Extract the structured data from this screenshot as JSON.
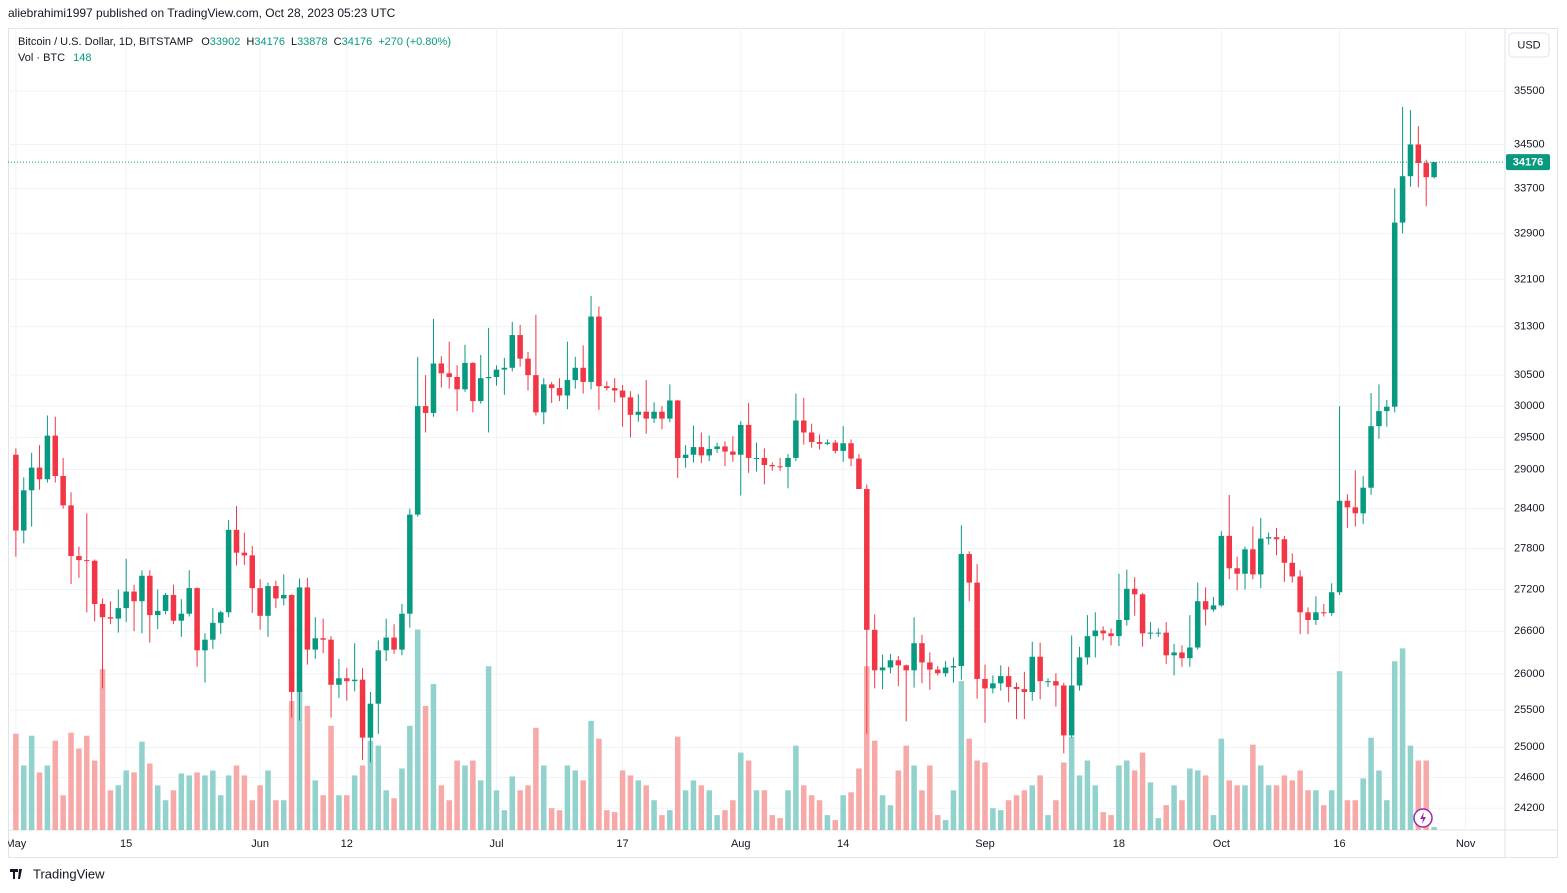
{
  "header": "aliebrahimi1997 published on TradingView.com, Oct 28, 2023 05:23 UTC",
  "footer": "TradingView",
  "chart_data": {
    "type": "candlestick",
    "title": "Bitcoin / U.S. Dollar, 1D, BITSTAMP",
    "ohlc_letters": [
      "O",
      "H",
      "L",
      "C"
    ],
    "change_label": "+270 (+0.80%)",
    "volume_label": "Vol · BTC",
    "price_axis_unit": "USD",
    "log_scale": true,
    "grid": true,
    "up_color": "#089981",
    "down_color": "#f23645",
    "up_volume_color": "#92d2cc",
    "down_volume_color": "#f7a9a7",
    "ylim": [
      23920,
      36715
    ],
    "yticks": [
      24200,
      24600,
      25000,
      25500,
      26000,
      26600,
      27200,
      27800,
      28400,
      29000,
      29500,
      30000,
      30500,
      31300,
      32100,
      32900,
      33700,
      34500,
      35500
    ],
    "xlim": [
      -1,
      189
    ],
    "xticks": [
      {
        "value": 0,
        "label": "May"
      },
      {
        "value": 14,
        "label": "15"
      },
      {
        "value": 31,
        "label": "Jun"
      },
      {
        "value": 42,
        "label": "12"
      },
      {
        "value": 61,
        "label": "Jul"
      },
      {
        "value": 77,
        "label": "17"
      },
      {
        "value": 92,
        "label": "Aug"
      },
      {
        "value": 105,
        "label": "14"
      },
      {
        "value": 123,
        "label": "Sep"
      },
      {
        "value": 140,
        "label": "18"
      },
      {
        "value": 153,
        "label": "Oct"
      },
      {
        "value": 168,
        "label": "16"
      },
      {
        "value": 184,
        "label": "Nov"
      }
    ],
    "candles": [
      [
        29230,
        29330,
        27680,
        28070
      ],
      [
        28070,
        28880,
        27880,
        28680
      ],
      [
        28680,
        29260,
        28130,
        29030
      ],
      [
        29030,
        29380,
        28690,
        28850
      ],
      [
        28850,
        29850,
        28800,
        29530
      ],
      [
        29530,
        29830,
        28800,
        28900
      ],
      [
        28900,
        29180,
        28400,
        28450
      ],
      [
        28450,
        28650,
        27280,
        27690
      ],
      [
        27690,
        27830,
        27370,
        27630
      ],
      [
        27630,
        28330,
        26870,
        27620
      ],
      [
        27620,
        27640,
        26740,
        26990
      ],
      [
        26990,
        27070,
        25800,
        26800
      ],
      [
        26800,
        27030,
        26700,
        26780
      ],
      [
        26780,
        27200,
        26580,
        26930
      ],
      [
        26930,
        27650,
        26730,
        27170
      ],
      [
        27170,
        27270,
        26600,
        27030
      ],
      [
        27030,
        27480,
        26570,
        27400
      ],
      [
        27400,
        27480,
        26440,
        26830
      ],
      [
        26830,
        27200,
        26630,
        26890
      ],
      [
        26890,
        27150,
        26840,
        27120
      ],
      [
        27120,
        27270,
        26700,
        26750
      ],
      [
        26750,
        27060,
        26520,
        26850
      ],
      [
        26850,
        27480,
        26810,
        27220
      ],
      [
        27220,
        27230,
        26100,
        26330
      ],
      [
        26330,
        26570,
        25880,
        26480
      ],
      [
        26480,
        26930,
        26350,
        26720
      ],
      [
        26720,
        26890,
        26560,
        26870
      ],
      [
        26870,
        28230,
        26800,
        28080
      ],
      [
        28080,
        28440,
        27550,
        27740
      ],
      [
        27740,
        28040,
        27560,
        27700
      ],
      [
        27700,
        27840,
        26860,
        27220
      ],
      [
        27220,
        27350,
        26620,
        26820
      ],
      [
        26820,
        27300,
        26520,
        27250
      ],
      [
        27250,
        27330,
        26930,
        27070
      ],
      [
        27070,
        27420,
        26970,
        27120
      ],
      [
        27120,
        27130,
        25400,
        25750
      ],
      [
        25750,
        27360,
        25360,
        27230
      ],
      [
        27230,
        27370,
        26130,
        26340
      ],
      [
        26340,
        26800,
        26210,
        26500
      ],
      [
        26500,
        26780,
        26290,
        26480
      ],
      [
        26480,
        26530,
        25400,
        25850
      ],
      [
        25850,
        26210,
        25670,
        25940
      ],
      [
        25940,
        26080,
        25630,
        25900
      ],
      [
        25900,
        26430,
        25760,
        25920
      ],
      [
        25920,
        26080,
        24830,
        25130
      ],
      [
        25130,
        25750,
        24800,
        25590
      ],
      [
        25590,
        26470,
        25180,
        26330
      ],
      [
        26330,
        26780,
        26180,
        26510
      ],
      [
        26510,
        26700,
        26280,
        26340
      ],
      [
        26340,
        26990,
        26260,
        26850
      ],
      [
        26850,
        28400,
        26650,
        28310
      ],
      [
        28310,
        30800,
        28280,
        30000
      ],
      [
        30000,
        30500,
        29580,
        29890
      ],
      [
        29890,
        31430,
        29830,
        30690
      ],
      [
        30690,
        30810,
        30300,
        30530
      ],
      [
        30530,
        31050,
        30280,
        30470
      ],
      [
        30470,
        30660,
        29920,
        30270
      ],
      [
        30270,
        31000,
        30230,
        30700
      ],
      [
        30700,
        30710,
        29900,
        30080
      ],
      [
        30080,
        30830,
        30040,
        30450
      ],
      [
        30450,
        31280,
        29580,
        30470
      ],
      [
        30470,
        30660,
        30330,
        30590
      ],
      [
        30590,
        30780,
        30180,
        30620
      ],
      [
        30620,
        31380,
        30560,
        31160
      ],
      [
        31160,
        31330,
        30640,
        30770
      ],
      [
        30770,
        30880,
        30250,
        30500
      ],
      [
        30500,
        31500,
        29850,
        29900
      ],
      [
        29900,
        30450,
        29710,
        30350
      ],
      [
        30350,
        30390,
        30050,
        30290
      ],
      [
        30290,
        30450,
        30080,
        30170
      ],
      [
        30170,
        31050,
        29950,
        30420
      ],
      [
        30420,
        30800,
        30280,
        30620
      ],
      [
        30620,
        30990,
        30200,
        30390
      ],
      [
        30390,
        31820,
        30270,
        31470
      ],
      [
        31470,
        31640,
        29940,
        30320
      ],
      [
        30320,
        30400,
        30250,
        30290
      ],
      [
        30290,
        30450,
        30060,
        30250
      ],
      [
        30250,
        30340,
        29670,
        30140
      ],
      [
        30140,
        30240,
        29500,
        29860
      ],
      [
        29860,
        30190,
        29750,
        29910
      ],
      [
        29910,
        30420,
        29560,
        29800
      ],
      [
        29800,
        30060,
        29730,
        29910
      ],
      [
        29910,
        30000,
        29630,
        29800
      ],
      [
        29800,
        30350,
        29740,
        30090
      ],
      [
        30090,
        30100,
        28870,
        29180
      ],
      [
        29180,
        29380,
        29030,
        29230
      ],
      [
        29230,
        29690,
        29110,
        29350
      ],
      [
        29350,
        29580,
        29100,
        29220
      ],
      [
        29220,
        29530,
        29130,
        29320
      ],
      [
        29320,
        29420,
        29260,
        29360
      ],
      [
        29360,
        29440,
        29050,
        29280
      ],
      [
        29280,
        29520,
        29120,
        29230
      ],
      [
        29230,
        29760,
        28600,
        29700
      ],
      [
        29700,
        30050,
        28950,
        29180
      ],
      [
        29180,
        29420,
        28970,
        29180
      ],
      [
        29180,
        29330,
        28770,
        29070
      ],
      [
        29070,
        29110,
        28980,
        29050
      ],
      [
        29050,
        29180,
        28980,
        29040
      ],
      [
        29040,
        29240,
        28710,
        29180
      ],
      [
        29180,
        30200,
        29130,
        29770
      ],
      [
        29770,
        30130,
        29390,
        29580
      ],
      [
        29580,
        29720,
        29340,
        29430
      ],
      [
        29430,
        29550,
        29310,
        29400
      ],
      [
        29400,
        29470,
        29380,
        29420
      ],
      [
        29420,
        29460,
        29250,
        29290
      ],
      [
        29290,
        29680,
        29120,
        29410
      ],
      [
        29410,
        29470,
        29050,
        29170
      ],
      [
        29170,
        29240,
        28710,
        28700
      ],
      [
        28700,
        28770,
        25180,
        26620
      ],
      [
        26620,
        26840,
        25800,
        26050
      ],
      [
        26050,
        26270,
        25790,
        26090
      ],
      [
        26090,
        26280,
        26010,
        26190
      ],
      [
        26190,
        26250,
        25830,
        26120
      ],
      [
        26120,
        26130,
        25350,
        26050
      ],
      [
        26050,
        26800,
        25810,
        26430
      ],
      [
        26430,
        26550,
        25870,
        26160
      ],
      [
        26160,
        26300,
        25780,
        26060
      ],
      [
        26060,
        26110,
        25980,
        26010
      ],
      [
        26010,
        26180,
        25960,
        26090
      ],
      [
        26090,
        26230,
        25880,
        26110
      ],
      [
        26110,
        28150,
        25920,
        27720
      ],
      [
        27720,
        27760,
        27030,
        27300
      ],
      [
        27300,
        27570,
        25660,
        25930
      ],
      [
        25930,
        26130,
        25330,
        25800
      ],
      [
        25800,
        25980,
        25730,
        25870
      ],
      [
        25870,
        26120,
        25770,
        25970
      ],
      [
        25970,
        26100,
        25610,
        25820
      ],
      [
        25820,
        25880,
        25380,
        25790
      ],
      [
        25790,
        26030,
        25380,
        25750
      ],
      [
        25750,
        26450,
        25630,
        26240
      ],
      [
        26240,
        26440,
        25650,
        25900
      ],
      [
        25900,
        25940,
        25820,
        25900
      ],
      [
        25900,
        26010,
        25550,
        25840
      ],
      [
        25840,
        25880,
        24920,
        25160
      ],
      [
        25160,
        26540,
        25130,
        25840
      ],
      [
        25840,
        26380,
        25770,
        26230
      ],
      [
        26230,
        26830,
        26130,
        26530
      ],
      [
        26530,
        26870,
        26230,
        26610
      ],
      [
        26610,
        26670,
        26470,
        26570
      ],
      [
        26570,
        26640,
        26400,
        26530
      ],
      [
        26530,
        27430,
        26390,
        26760
      ],
      [
        26760,
        27490,
        26680,
        27210
      ],
      [
        27210,
        27380,
        26820,
        27130
      ],
      [
        27130,
        27150,
        26380,
        26570
      ],
      [
        26570,
        26730,
        26490,
        26580
      ],
      [
        26580,
        26640,
        26520,
        26580
      ],
      [
        26580,
        26730,
        26140,
        26260
      ],
      [
        26260,
        26420,
        25980,
        26300
      ],
      [
        26300,
        26400,
        26100,
        26220
      ],
      [
        26220,
        26830,
        26100,
        26370
      ],
      [
        26370,
        27300,
        26340,
        27030
      ],
      [
        27030,
        27230,
        26680,
        26910
      ],
      [
        26910,
        27090,
        26880,
        26970
      ],
      [
        26970,
        28060,
        26950,
        27990
      ],
      [
        27990,
        28610,
        27350,
        27510
      ],
      [
        27510,
        27680,
        27190,
        27430
      ],
      [
        27430,
        27830,
        27200,
        27790
      ],
      [
        27790,
        28130,
        27350,
        27420
      ],
      [
        27420,
        28260,
        27220,
        27950
      ],
      [
        27950,
        28040,
        27860,
        27970
      ],
      [
        27970,
        28110,
        27700,
        27940
      ],
      [
        27940,
        27990,
        27310,
        27590
      ],
      [
        27590,
        27730,
        27300,
        27390
      ],
      [
        27390,
        27480,
        26560,
        26870
      ],
      [
        26870,
        26940,
        26560,
        26760
      ],
      [
        26760,
        27100,
        26690,
        26870
      ],
      [
        26870,
        26990,
        26810,
        26860
      ],
      [
        26860,
        27290,
        26820,
        27160
      ],
      [
        27160,
        30000,
        27120,
        28520
      ],
      [
        28520,
        28620,
        28110,
        28420
      ],
      [
        28420,
        28990,
        28130,
        28330
      ],
      [
        28330,
        28900,
        28170,
        28720
      ],
      [
        28720,
        30210,
        28610,
        29680
      ],
      [
        29680,
        30350,
        29480,
        29920
      ],
      [
        29920,
        30100,
        29670,
        29990
      ],
      [
        29990,
        33700,
        29900,
        33090
      ],
      [
        33090,
        35200,
        32900,
        33920
      ],
      [
        33920,
        35140,
        33730,
        34500
      ],
      [
        34500,
        34840,
        33720,
        34160
      ],
      [
        34160,
        34220,
        33380,
        33902
      ],
      [
        33902,
        34176,
        33878,
        34176
      ]
    ],
    "volumes": [
      4850,
      3250,
      4750,
      2900,
      3250,
      4500,
      1750,
      4900,
      4100,
      4750,
      3500,
      8100,
      2000,
      2250,
      3000,
      2900,
      4450,
      3350,
      2250,
      1500,
      2000,
      2850,
      2750,
      2900,
      2750,
      3000,
      1750,
      2750,
      3250,
      2750,
      1500,
      2250,
      3000,
      1500,
      1500,
      6500,
      7000,
      6250,
      2500,
      1750,
      5250,
      1750,
      1750,
      2750,
      3250,
      4500,
      4250,
      2000,
      1600,
      3100,
      5250,
      10100,
      6250,
      7350,
      2250,
      1500,
      3500,
      3250,
      3500,
      2500,
      8250,
      2000,
      1000,
      2700,
      2000,
      2250,
      5150,
      3250,
      1100,
      1000,
      3250,
      3000,
      2500,
      5500,
      4600,
      1000,
      900,
      3000,
      2750,
      2500,
      2250,
      1500,
      750,
      1000,
      4700,
      2000,
      2500,
      2250,
      2000,
      750,
      1000,
      1500,
      3900,
      3500,
      2000,
      2000,
      750,
      600,
      2000,
      4250,
      2250,
      1750,
      1500,
      750,
      500,
      1750,
      1900,
      3100,
      8250,
      4500,
      1750,
      1250,
      3000,
      4250,
      3250,
      2000,
      3250,
      750,
      500,
      2000,
      7500,
      4600,
      3500,
      3400,
      1100,
      1000,
      1500,
      1750,
      2000,
      2250,
      2750,
      750,
      1500,
      3400,
      4700,
      2750,
      3500,
      2250,
      900,
      750,
      3250,
      3500,
      3000,
      3900,
      2400,
      600,
      1250,
      2250,
      1500,
      3100,
      3000,
      2750,
      750,
      4600,
      2500,
      2250,
      2250,
      4300,
      3250,
      2250,
      2250,
      2750,
      2500,
      3000,
      2000,
      2000,
      1250,
      2000,
      8000,
      1500,
      1500,
      2600,
      4650,
      3000,
      1500,
      8500,
      9150,
      4250,
      3500,
      3500,
      148
    ]
  }
}
